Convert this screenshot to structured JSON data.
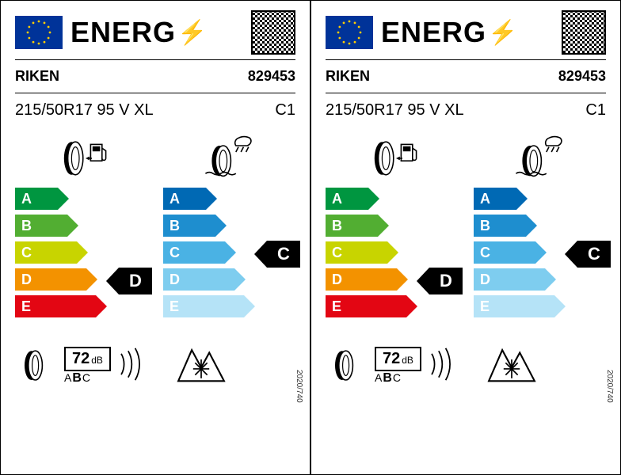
{
  "header": {
    "energy_text": "ENERG"
  },
  "brand": "RIKEN",
  "article_number": "829453",
  "tire_spec": "215/50R17 95 V XL",
  "tire_class": "C1",
  "regulation": "2020/740",
  "fuel_scale": {
    "letters": [
      "A",
      "B",
      "C",
      "D",
      "E"
    ],
    "colors": [
      "#009640",
      "#52ae32",
      "#c8d400",
      "#f39200",
      "#e30613"
    ],
    "widths": [
      46,
      58,
      70,
      82,
      94
    ],
    "rating": "D",
    "rating_index": 3
  },
  "wet_scale": {
    "letters": [
      "A",
      "B",
      "C",
      "D",
      "E"
    ],
    "colors": [
      "#0069b4",
      "#1e8ecf",
      "#4ab2e4",
      "#7ecdef",
      "#b5e3f7"
    ],
    "widths": [
      46,
      58,
      70,
      82,
      94
    ],
    "rating": "C",
    "rating_index": 2
  },
  "noise": {
    "value": "72",
    "unit": "dB",
    "classes": [
      "A",
      "B",
      "C"
    ],
    "selected": "B"
  }
}
